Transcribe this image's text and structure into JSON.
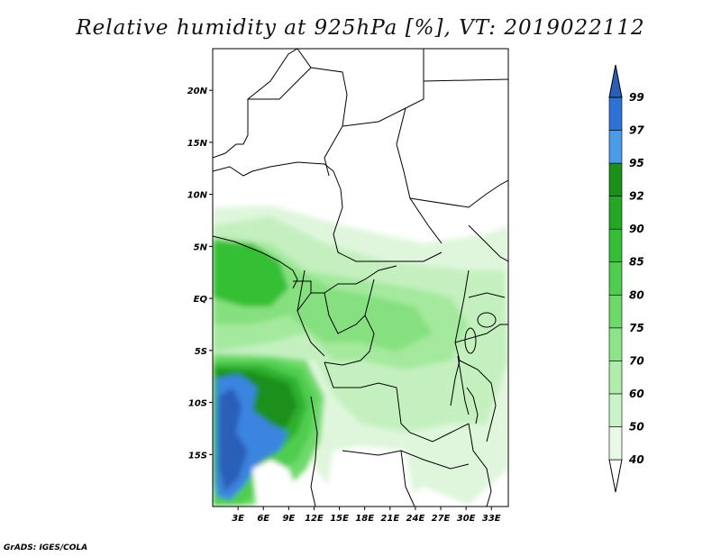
{
  "title": "Relative humidity at 925hPa [%], VT: 2019022112",
  "footer": "GrADS: IGES/COLA",
  "map": {
    "lon_range": [
      0,
      35
    ],
    "lat_range": [
      -20,
      24
    ],
    "lat_labels": [
      "20N",
      "15N",
      "10N",
      "5N",
      "EQ",
      "5S",
      "10S",
      "15S"
    ],
    "lat_values": [
      20,
      15,
      10,
      5,
      0,
      -5,
      -10,
      -15
    ],
    "lon_labels": [
      "3E",
      "6E",
      "9E",
      "12E",
      "15E",
      "18E",
      "21E",
      "24E",
      "27E",
      "30E",
      "33E"
    ],
    "lon_values": [
      3,
      6,
      9,
      12,
      15,
      18,
      21,
      24,
      27,
      30,
      33
    ]
  },
  "colorbar": {
    "labels": [
      "40",
      "50",
      "60",
      "70",
      "75",
      "80",
      "85",
      "90",
      "92",
      "95",
      "97",
      "99"
    ],
    "colors": [
      "#ffffff",
      "#e8f9e6",
      "#ccf3c7",
      "#b0ecaa",
      "#8fe489",
      "#6ed96b",
      "#4fcd4f",
      "#36bf36",
      "#24a824",
      "#1a8f1a",
      "#4a9be8",
      "#2e72d6",
      "#2a5fb8"
    ]
  }
}
